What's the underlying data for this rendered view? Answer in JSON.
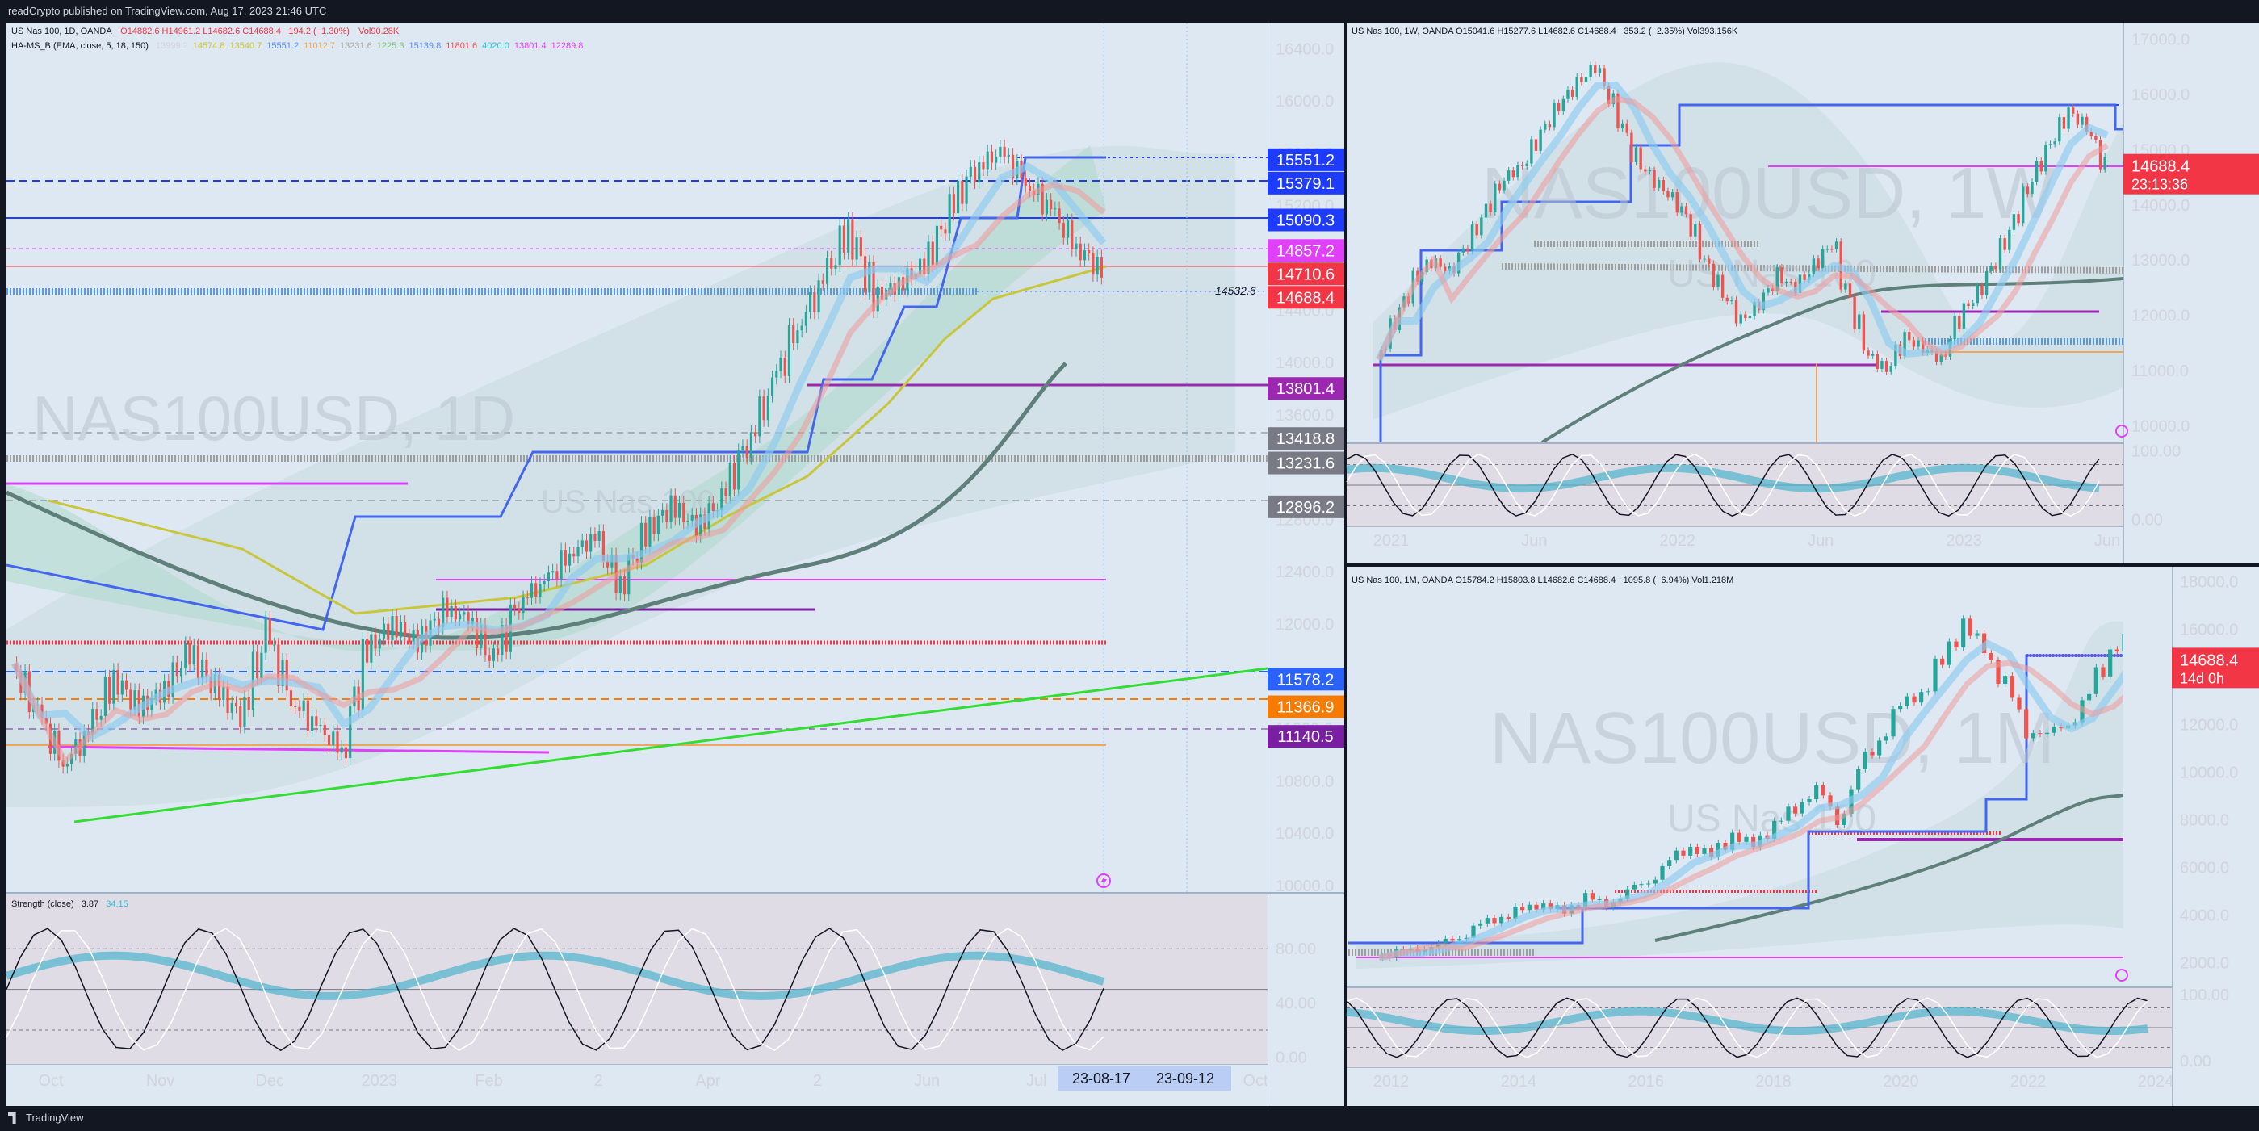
{
  "header_text": "readCrypto published on TradingView.com, Aug 17, 2023 21:46 UTC",
  "footer_brand": "TradingView",
  "chart_data": [
    {
      "type": "line",
      "panel": "daily",
      "symbol_watermark": "NAS100USD, 1D",
      "watermark_sub": "US Nas 100",
      "legend_line1": {
        "prefix": "US Nas 100, 1D, OANDA",
        "ohlc": "O14882.6  H14961.2  L14682.6  C14688.4  −194.2 (−1.30%)",
        "vol": "Vol90.28K"
      },
      "legend_line2": {
        "name": "HA-MS_B (EMA, close, 5, 18, 150)",
        "values": [
          "13999.2",
          "14574.8",
          "13540.7",
          "15551.2",
          "11012.7",
          "13231.6",
          "1225.3",
          "15139.8",
          "11801.6",
          "4020.0",
          "13801.4",
          "12289.8"
        ],
        "colors": [
          "#d1d4dc",
          "#c8c63a",
          "#c8c63a",
          "#5b8cff",
          "#e8a85a",
          "#aaaaaa",
          "#7ec47e",
          "#5b8cff",
          "#ef5350",
          "#26c6da",
          "#e040fb",
          "#e040fb"
        ]
      },
      "y_ticks": [
        "16400.0",
        "16000.0",
        "15600.0",
        "15200.0",
        "14800.0",
        "14400.0",
        "14000.0",
        "13600.0",
        "13200.0",
        "12800.0",
        "12400.0",
        "12000.0",
        "11600.0",
        "11200.0",
        "10800.0",
        "10400.0",
        "10000.0"
      ],
      "ylim": [
        9950,
        16600
      ],
      "x_ticks": [
        "Oct",
        "Nov",
        "Dec",
        "2023",
        "Feb",
        "2",
        "Apr",
        "2",
        "Jun",
        "Jul",
        "Aug",
        "Oct"
      ],
      "x_date_marks": [
        "23-08-17",
        "23-09-12"
      ],
      "price_tags": [
        {
          "value": "15551.2",
          "color": "#1e3cff"
        },
        {
          "value": "15379.1",
          "color": "#1e3cff"
        },
        {
          "value": "15090.3",
          "color": "#1e3cff"
        },
        {
          "value": "14857.2",
          "color": "#e040fb"
        },
        {
          "value": "14710.6",
          "color": "#f23645"
        },
        {
          "value": "14688.4",
          "color": "#f23645"
        },
        {
          "value": "13801.4",
          "color": "#9c27b0"
        },
        {
          "value": "13418.8",
          "color": "#787b86"
        },
        {
          "value": "13231.6",
          "color": "#787b86"
        },
        {
          "value": "12896.2",
          "color": "#787b86"
        },
        {
          "value": "11578.2",
          "color": "#2962ff"
        },
        {
          "value": "11366.9",
          "color": "#f57c00"
        },
        {
          "value": "11140.5",
          "color": "#7b1fa2"
        }
      ],
      "inline_label": "14532.6",
      "close": 14688.4,
      "price_path": [
        11700,
        11300,
        10950,
        11150,
        11600,
        11350,
        11500,
        11800,
        11500,
        11300,
        11900,
        11450,
        11200,
        11050,
        11800,
        12000,
        11850,
        12100,
        12050,
        11700,
        12200,
        12300,
        12550,
        12650,
        12300,
        12700,
        12900,
        12750,
        12950,
        13400,
        13800,
        14300,
        14600,
        15050,
        14500,
        14600,
        14750,
        15150,
        15500,
        15600,
        15400,
        15150,
        14900,
        14688
      ],
      "indicator": {
        "name": "Strength (close)",
        "values": [
          "3.87",
          "34.15"
        ],
        "y_ticks": [
          "80.00",
          "40.00",
          "0.00"
        ],
        "ylim": [
          -5,
          120
        ]
      }
    },
    {
      "type": "line",
      "panel": "weekly",
      "symbol_watermark": "NAS100USD, 1W",
      "watermark_sub": "US Nas 100",
      "legend": "US Nas 100, 1W, OANDA  O15041.6  H15277.6  L14682.6  C14688.4  −353.2 (−2.35%)  Vol393.156K",
      "y_ticks": [
        "17000.0",
        "16000.0",
        "15000.0",
        "14000.0",
        "13000.0",
        "12000.0",
        "11000.0",
        "10000.0"
      ],
      "ylim": [
        9700,
        17300
      ],
      "x_ticks": [
        "2021",
        "Jun",
        "2022",
        "Jun",
        "2023",
        "Jun"
      ],
      "price_tag": {
        "value": "14688.4",
        "countdown": "23:13:36",
        "color": "#f23645"
      },
      "price_path": [
        11200,
        11900,
        12600,
        13000,
        12800,
        13300,
        13900,
        14500,
        14700,
        15300,
        15800,
        16200,
        16500,
        15800,
        15000,
        14500,
        14200,
        13800,
        13000,
        12400,
        11900,
        12200,
        12700,
        12500,
        12900,
        13300,
        12200,
        11300,
        11000,
        11600,
        11400,
        11200,
        12000,
        12400,
        13000,
        13700,
        14500,
        15100,
        15700,
        15400,
        14688
      ],
      "indicator": {
        "y_ticks": [
          "100.00",
          "0.00"
        ],
        "ylim": [
          -10,
          110
        ]
      }
    },
    {
      "type": "line",
      "panel": "monthly",
      "symbol_watermark": "NAS100USD, 1M",
      "watermark_sub": "US Nas 100",
      "legend": "US Nas 100, 1M, OANDA  O15784.2  H15803.8  L14682.6  C14688.4  −1095.8 (−6.94%)  Vol1.218M",
      "y_ticks": [
        "18000.0",
        "16000.0",
        "14000.0",
        "12000.0",
        "10000.0",
        "8000.0",
        "6000.0",
        "4000.0",
        "2000.0"
      ],
      "ylim": [
        1000,
        18500
      ],
      "x_ticks": [
        "2012",
        "2014",
        "2016",
        "2018",
        "2020",
        "2022",
        "2024"
      ],
      "price_tag": {
        "value": "14688.4",
        "countdown": "14d 0h",
        "color": "#f23645"
      },
      "price_path": [
        2200,
        2400,
        2600,
        2700,
        3100,
        3600,
        3900,
        4300,
        4400,
        4200,
        4700,
        4500,
        4900,
        5500,
        6200,
        6900,
        6500,
        7300,
        7000,
        7700,
        8600,
        9200,
        8100,
        9800,
        11500,
        12800,
        13300,
        14800,
        16100,
        15300,
        13500,
        11900,
        11500,
        12100,
        13200,
        15100,
        15800,
        14688
      ],
      "indicator": {
        "y_ticks": [
          "100.00",
          "0.00"
        ],
        "ylim": [
          -10,
          110
        ]
      }
    }
  ]
}
